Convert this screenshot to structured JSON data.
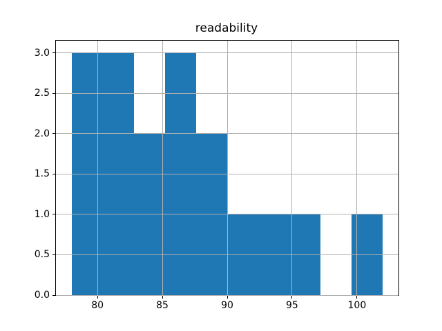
{
  "chart_data": {
    "type": "bar",
    "subtype": "histogram",
    "title": "readability",
    "xlabel": "",
    "ylabel": "",
    "bin_edges": [
      78,
      80.4,
      82.8,
      85.2,
      87.6,
      90,
      92.4,
      94.8,
      97.2,
      99.6,
      102
    ],
    "counts": [
      3,
      3,
      2,
      3,
      2,
      1,
      1,
      1,
      0,
      1
    ],
    "xticks": [
      80,
      85,
      90,
      95,
      100
    ],
    "yticks": [
      0.0,
      0.5,
      1.0,
      1.5,
      2.0,
      2.5,
      3.0
    ],
    "xlim": [
      76.8,
      103.2
    ],
    "ylim": [
      0,
      3.15
    ],
    "grid": true,
    "grid_over_bars": true,
    "legend": "none",
    "bar_color": "#1f77b4",
    "grid_color": "#b0b0b0",
    "spine_color": "#000000",
    "text_color": "#000000",
    "background_color": "#ffffff"
  }
}
